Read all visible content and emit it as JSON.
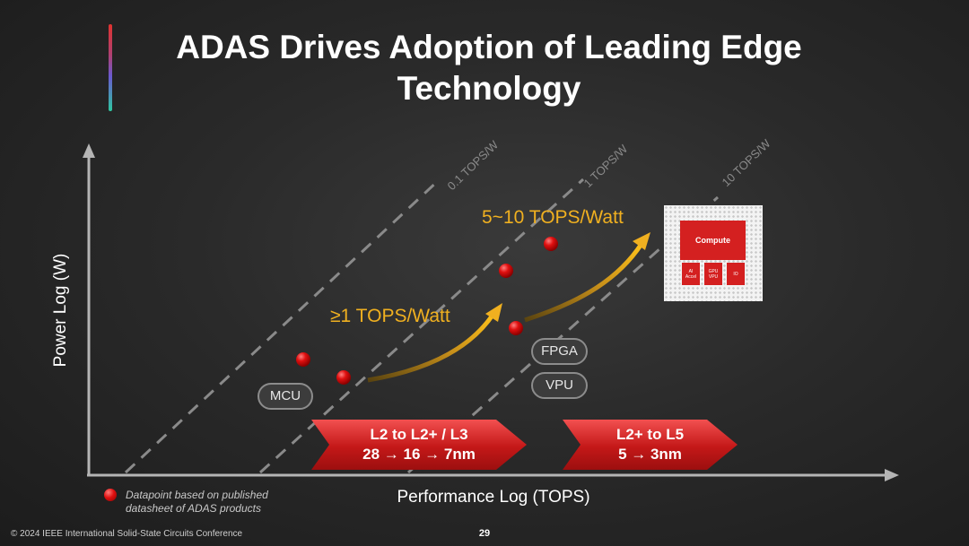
{
  "title": {
    "line1": "ADAS Drives Adoption of Leading Edge",
    "line2": "Technology"
  },
  "axes": {
    "y_label": "Power Log (W)",
    "x_label": "Performance Log (TOPS)"
  },
  "efficiency_lines": [
    "0.1 TOPS/W",
    "1 TOPS/W",
    "10 TOPS/W"
  ],
  "annotations": {
    "ge1": "≥1 TOPS/Watt",
    "range": "5~10 TOPS/Watt"
  },
  "pills": {
    "mcu": "MCU",
    "fpga": "FPGA",
    "vpu": "VPU"
  },
  "chevrons": [
    {
      "line1": "L2 to L2+ / L3",
      "line2": "28 → 16 → 7nm"
    },
    {
      "line1": "L2+ to L5",
      "line2": "5 → 3nm"
    }
  ],
  "chip": {
    "compute": "Compute",
    "ai": [
      "AI",
      "Accel"
    ],
    "gpu": [
      "GPU",
      "VPU"
    ],
    "io": "IO"
  },
  "footnote": "Datapoint based on published datasheet of ADAS products",
  "footer": {
    "copyright": "© 2024 IEEE International Solid-State Circuits Conference",
    "page": "29"
  },
  "colors": {
    "datapoint": "#d81010",
    "arrow": "#f0b020",
    "chevron": "#c41818",
    "accent_top": "#e0332f",
    "accent_bottom": "#2ec7a0"
  }
}
